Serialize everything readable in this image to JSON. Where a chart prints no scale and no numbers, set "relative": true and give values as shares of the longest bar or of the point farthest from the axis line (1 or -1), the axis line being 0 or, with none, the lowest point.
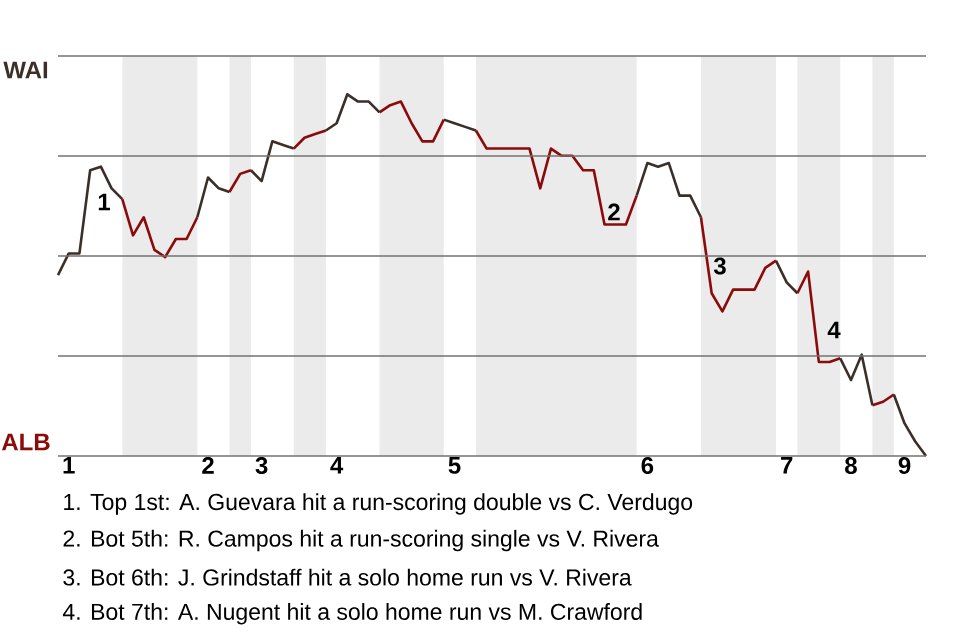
{
  "chart_data": {
    "type": "line",
    "relative": true,
    "categories": [
      null,
      "1",
      null,
      null,
      null,
      null,
      null,
      null,
      null,
      null,
      null,
      null,
      null,
      null,
      "2",
      null,
      null,
      null,
      null,
      "3",
      null,
      null,
      null,
      null,
      null,
      null,
      "4",
      null,
      null,
      null,
      null,
      null,
      null,
      null,
      null,
      null,
      null,
      "5",
      null,
      null,
      null,
      null,
      null,
      null,
      null,
      null,
      null,
      null,
      null,
      null,
      null,
      null,
      null,
      null,
      null,
      "6",
      null,
      null,
      null,
      null,
      null,
      null,
      null,
      null,
      null,
      null,
      null,
      null,
      "7",
      null,
      null,
      null,
      null,
      null,
      "8",
      null,
      null,
      null,
      null,
      "9",
      null,
      null
    ],
    "series": [
      {
        "color": "#3b2f2a",
        "values": [
          0.5,
          0.56,
          0.56,
          0.79,
          0.8,
          0.74,
          0.71,
          null,
          null,
          null,
          null,
          null,
          null,
          null,
          null,
          null,
          null,
          null,
          null,
          null,
          null,
          null,
          null,
          null,
          null,
          null,
          null,
          null,
          null,
          null,
          null,
          null,
          null,
          null,
          null,
          null,
          null,
          null,
          null,
          null,
          null,
          null,
          null,
          null,
          null,
          null,
          null,
          null,
          null,
          null,
          null,
          null,
          null,
          null,
          null,
          null,
          null,
          null,
          null,
          null,
          null,
          null,
          null,
          null,
          null,
          null,
          null,
          null,
          null,
          null,
          null,
          null,
          null,
          null,
          null,
          null,
          null,
          null,
          null,
          null,
          null,
          null
        ]
      },
      {
        "color": "#8b0a0a",
        "values": [
          null,
          null,
          null,
          null,
          null,
          null,
          0.71,
          0.61,
          0.66,
          0.57,
          0.55,
          0.6,
          0.6,
          0.66,
          null,
          null,
          null,
          null,
          null,
          null,
          null,
          null,
          null,
          null,
          null,
          null,
          null,
          null,
          null,
          null,
          null,
          null,
          null,
          null,
          null,
          null,
          null,
          null,
          null,
          null,
          null,
          null,
          null,
          null,
          null,
          null,
          null,
          null,
          null,
          null,
          null,
          null,
          null,
          null,
          null,
          null,
          null,
          null,
          null,
          null,
          null,
          null,
          null,
          null,
          null,
          null,
          null,
          null,
          null,
          null,
          null,
          null,
          null,
          null,
          null,
          null,
          null,
          null,
          null,
          null,
          null,
          null
        ]
      },
      {
        "color": "#3b2f2a",
        "values": [
          null,
          null,
          null,
          null,
          null,
          null,
          null,
          null,
          null,
          null,
          null,
          null,
          null,
          0.66,
          0.77,
          0.74,
          0.73,
          null,
          null,
          null,
          null,
          null,
          null,
          null,
          null,
          null,
          null,
          null,
          null,
          null,
          null,
          null,
          null,
          null,
          null,
          null,
          null,
          null,
          null,
          null,
          null,
          null,
          null,
          null,
          null,
          null,
          null,
          null,
          null,
          null,
          null,
          null,
          null,
          null,
          null,
          null,
          null,
          null,
          null,
          null,
          null,
          null,
          null,
          null,
          null,
          null,
          null,
          null,
          null,
          null,
          null,
          null,
          null,
          null,
          null,
          null,
          null,
          null,
          null,
          null,
          null,
          null
        ]
      },
      {
        "color": "#8b0a0a",
        "values": [
          null,
          null,
          null,
          null,
          null,
          null,
          null,
          null,
          null,
          null,
          null,
          null,
          null,
          null,
          null,
          null,
          0.73,
          0.78,
          0.79,
          null,
          null,
          null,
          null,
          null,
          null,
          null,
          null,
          null,
          null,
          null,
          null,
          null,
          null,
          null,
          null,
          null,
          null,
          null,
          null,
          null,
          null,
          null,
          null,
          null,
          null,
          null,
          null,
          null,
          null,
          null,
          null,
          null,
          null,
          null,
          null,
          null,
          null,
          null,
          null,
          null,
          null,
          null,
          null,
          null,
          null,
          null,
          null,
          null,
          null,
          null,
          null,
          null,
          null,
          null,
          null,
          null,
          null,
          null,
          null,
          null,
          null,
          null
        ]
      },
      {
        "color": "#3b2f2a",
        "values": [
          null,
          null,
          null,
          null,
          null,
          null,
          null,
          null,
          null,
          null,
          null,
          null,
          null,
          null,
          null,
          null,
          null,
          null,
          0.79,
          0.76,
          0.87,
          0.86,
          0.85,
          null,
          null,
          null,
          null,
          null,
          null,
          null,
          null,
          null,
          null,
          null,
          null,
          null,
          null,
          null,
          null,
          null,
          null,
          null,
          null,
          null,
          null,
          null,
          null,
          null,
          null,
          null,
          null,
          null,
          null,
          null,
          null,
          null,
          null,
          null,
          null,
          null,
          null,
          null,
          null,
          null,
          null,
          null,
          null,
          null,
          null,
          null,
          null,
          null,
          null,
          null,
          null,
          null,
          null,
          null,
          null,
          null,
          null,
          null
        ]
      },
      {
        "color": "#8b0a0a",
        "values": [
          null,
          null,
          null,
          null,
          null,
          null,
          null,
          null,
          null,
          null,
          null,
          null,
          null,
          null,
          null,
          null,
          null,
          null,
          null,
          null,
          null,
          null,
          0.85,
          0.88,
          0.89,
          0.9,
          null,
          null,
          null,
          null,
          null,
          null,
          null,
          null,
          null,
          null,
          null,
          null,
          null,
          null,
          null,
          null,
          null,
          null,
          null,
          null,
          null,
          null,
          null,
          null,
          null,
          null,
          null,
          null,
          null,
          null,
          null,
          null,
          null,
          null,
          null,
          null,
          null,
          null,
          null,
          null,
          null,
          null,
          null,
          null,
          null,
          null,
          null,
          null,
          null,
          null,
          null,
          null,
          null,
          null,
          null,
          null
        ]
      },
      {
        "color": "#3b2f2a",
        "values": [
          null,
          null,
          null,
          null,
          null,
          null,
          null,
          null,
          null,
          null,
          null,
          null,
          null,
          null,
          null,
          null,
          null,
          null,
          null,
          null,
          null,
          null,
          null,
          null,
          null,
          0.9,
          0.92,
          1,
          0.98,
          0.98,
          0.95,
          null,
          null,
          null,
          null,
          null,
          null,
          null,
          null,
          null,
          null,
          null,
          null,
          null,
          null,
          null,
          null,
          null,
          null,
          null,
          null,
          null,
          null,
          null,
          null,
          null,
          null,
          null,
          null,
          null,
          null,
          null,
          null,
          null,
          null,
          null,
          null,
          null,
          null,
          null,
          null,
          null,
          null,
          null,
          null,
          null,
          null,
          null,
          null,
          null,
          null,
          null
        ]
      },
      {
        "color": "#8b0a0a",
        "values": [
          null,
          null,
          null,
          null,
          null,
          null,
          null,
          null,
          null,
          null,
          null,
          null,
          null,
          null,
          null,
          null,
          null,
          null,
          null,
          null,
          null,
          null,
          null,
          null,
          null,
          null,
          null,
          null,
          null,
          null,
          0.95,
          0.97,
          0.98,
          0.92,
          0.87,
          0.87,
          0.93,
          null,
          null,
          null,
          null,
          null,
          null,
          null,
          null,
          null,
          null,
          null,
          null,
          null,
          null,
          null,
          null,
          null,
          null,
          null,
          null,
          null,
          null,
          null,
          null,
          null,
          null,
          null,
          null,
          null,
          null,
          null,
          null,
          null,
          null,
          null,
          null,
          null,
          null,
          null,
          null,
          null,
          null,
          null,
          null,
          null
        ]
      },
      {
        "color": "#3b2f2a",
        "values": [
          null,
          null,
          null,
          null,
          null,
          null,
          null,
          null,
          null,
          null,
          null,
          null,
          null,
          null,
          null,
          null,
          null,
          null,
          null,
          null,
          null,
          null,
          null,
          null,
          null,
          null,
          null,
          null,
          null,
          null,
          null,
          null,
          null,
          null,
          null,
          null,
          0.93,
          0.92,
          0.91,
          0.9,
          null,
          null,
          null,
          null,
          null,
          null,
          null,
          null,
          null,
          null,
          null,
          null,
          null,
          null,
          null,
          null,
          null,
          null,
          null,
          null,
          null,
          null,
          null,
          null,
          null,
          null,
          null,
          null,
          null,
          null,
          null,
          null,
          null,
          null,
          null,
          null,
          null,
          null,
          null,
          null,
          null,
          null
        ]
      },
      {
        "color": "#8b0a0a",
        "values": [
          null,
          null,
          null,
          null,
          null,
          null,
          null,
          null,
          null,
          null,
          null,
          null,
          null,
          null,
          null,
          null,
          null,
          null,
          null,
          null,
          null,
          null,
          null,
          null,
          null,
          null,
          null,
          null,
          null,
          null,
          null,
          null,
          null,
          null,
          null,
          null,
          null,
          null,
          null,
          0.9,
          0.85,
          0.85,
          0.85,
          0.85,
          0.85,
          0.74,
          0.85,
          0.83,
          0.83,
          0.79,
          0.79,
          0.64,
          0.64,
          0.64,
          0.72,
          null,
          null,
          null,
          null,
          null,
          null,
          null,
          null,
          null,
          null,
          null,
          null,
          null,
          null,
          null,
          null,
          null,
          null,
          null,
          null,
          null,
          null,
          null,
          null,
          null,
          null,
          null
        ]
      },
      {
        "color": "#3b2f2a",
        "values": [
          null,
          null,
          null,
          null,
          null,
          null,
          null,
          null,
          null,
          null,
          null,
          null,
          null,
          null,
          null,
          null,
          null,
          null,
          null,
          null,
          null,
          null,
          null,
          null,
          null,
          null,
          null,
          null,
          null,
          null,
          null,
          null,
          null,
          null,
          null,
          null,
          null,
          null,
          null,
          null,
          null,
          null,
          null,
          null,
          null,
          null,
          null,
          null,
          null,
          null,
          null,
          null,
          null,
          null,
          0.72,
          0.81,
          0.8,
          0.81,
          0.72,
          0.72,
          0.66,
          null,
          null,
          null,
          null,
          null,
          null,
          null,
          null,
          null,
          null,
          null,
          null,
          null,
          null,
          null,
          null,
          null,
          null,
          null,
          null,
          null
        ]
      },
      {
        "color": "#8b0a0a",
        "values": [
          null,
          null,
          null,
          null,
          null,
          null,
          null,
          null,
          null,
          null,
          null,
          null,
          null,
          null,
          null,
          null,
          null,
          null,
          null,
          null,
          null,
          null,
          null,
          null,
          null,
          null,
          null,
          null,
          null,
          null,
          null,
          null,
          null,
          null,
          null,
          null,
          null,
          null,
          null,
          null,
          null,
          null,
          null,
          null,
          null,
          null,
          null,
          null,
          null,
          null,
          null,
          null,
          null,
          null,
          null,
          null,
          null,
          null,
          null,
          null,
          0.66,
          0.45,
          0.4,
          0.46,
          0.46,
          0.46,
          0.52,
          0.54,
          null,
          null,
          null,
          null,
          null,
          null,
          null,
          null,
          null,
          null,
          null,
          null,
          null,
          null
        ]
      },
      {
        "color": "#3b2f2a",
        "values": [
          null,
          null,
          null,
          null,
          null,
          null,
          null,
          null,
          null,
          null,
          null,
          null,
          null,
          null,
          null,
          null,
          null,
          null,
          null,
          null,
          null,
          null,
          null,
          null,
          null,
          null,
          null,
          null,
          null,
          null,
          null,
          null,
          null,
          null,
          null,
          null,
          null,
          null,
          null,
          null,
          null,
          null,
          null,
          null,
          null,
          null,
          null,
          null,
          null,
          null,
          null,
          null,
          null,
          null,
          null,
          null,
          null,
          null,
          null,
          null,
          null,
          null,
          null,
          null,
          null,
          null,
          null,
          0.54,
          0.48,
          0.45,
          null,
          null,
          null,
          null,
          null,
          null,
          null,
          null,
          null,
          null,
          null,
          null
        ]
      },
      {
        "color": "#8b0a0a",
        "values": [
          null,
          null,
          null,
          null,
          null,
          null,
          null,
          null,
          null,
          null,
          null,
          null,
          null,
          null,
          null,
          null,
          null,
          null,
          null,
          null,
          null,
          null,
          null,
          null,
          null,
          null,
          null,
          null,
          null,
          null,
          null,
          null,
          null,
          null,
          null,
          null,
          null,
          null,
          null,
          null,
          null,
          null,
          null,
          null,
          null,
          null,
          null,
          null,
          null,
          null,
          null,
          null,
          null,
          null,
          null,
          null,
          null,
          null,
          null,
          null,
          null,
          null,
          null,
          null,
          null,
          null,
          null,
          null,
          null,
          0.45,
          0.51,
          0.26,
          0.26,
          0.27,
          null,
          null,
          null,
          null,
          null,
          null,
          null,
          null
        ]
      },
      {
        "color": "#3b2f2a",
        "values": [
          null,
          null,
          null,
          null,
          null,
          null,
          null,
          null,
          null,
          null,
          null,
          null,
          null,
          null,
          null,
          null,
          null,
          null,
          null,
          null,
          null,
          null,
          null,
          null,
          null,
          null,
          null,
          null,
          null,
          null,
          null,
          null,
          null,
          null,
          null,
          null,
          null,
          null,
          null,
          null,
          null,
          null,
          null,
          null,
          null,
          null,
          null,
          null,
          null,
          null,
          null,
          null,
          null,
          null,
          null,
          null,
          null,
          null,
          null,
          null,
          null,
          null,
          null,
          null,
          null,
          null,
          null,
          null,
          null,
          null,
          null,
          null,
          null,
          0.27,
          0.21,
          0.28,
          0.14,
          null,
          null,
          null,
          null,
          null
        ]
      },
      {
        "color": "#8b0a0a",
        "values": [
          null,
          null,
          null,
          null,
          null,
          null,
          null,
          null,
          null,
          null,
          null,
          null,
          null,
          null,
          null,
          null,
          null,
          null,
          null,
          null,
          null,
          null,
          null,
          null,
          null,
          null,
          null,
          null,
          null,
          null,
          null,
          null,
          null,
          null,
          null,
          null,
          null,
          null,
          null,
          null,
          null,
          null,
          null,
          null,
          null,
          null,
          null,
          null,
          null,
          null,
          null,
          null,
          null,
          null,
          null,
          null,
          null,
          null,
          null,
          null,
          null,
          null,
          null,
          null,
          null,
          null,
          null,
          null,
          null,
          null,
          null,
          null,
          null,
          null,
          null,
          null,
          0.14,
          0.15,
          0.17,
          null,
          null,
          null
        ]
      },
      {
        "color": "#3b2f2a",
        "values": [
          null,
          null,
          null,
          null,
          null,
          null,
          null,
          null,
          null,
          null,
          null,
          null,
          null,
          null,
          null,
          null,
          null,
          null,
          null,
          null,
          null,
          null,
          null,
          null,
          null,
          null,
          null,
          null,
          null,
          null,
          null,
          null,
          null,
          null,
          null,
          null,
          null,
          null,
          null,
          null,
          null,
          null,
          null,
          null,
          null,
          null,
          null,
          null,
          null,
          null,
          null,
          null,
          null,
          null,
          null,
          null,
          null,
          null,
          null,
          null,
          null,
          null,
          null,
          null,
          null,
          null,
          null,
          null,
          null,
          null,
          null,
          null,
          null,
          null,
          null,
          null,
          null,
          null,
          0.17,
          0.09,
          0.04,
          0
        ]
      }
    ],
    "grid": "y",
    "annotations": [
      "1",
      "2",
      "3",
      "4",
      "WAI",
      "ALB",
      "1. Top 1st: A. Guevara hit a run-scoring double vs C. Verdugo",
      "2. Bot 5th: R. Campos hit a run-scoring single vs V. Rivera",
      "3. Bot 6th: J. Grindstaff hit a solo home run vs V. Rivera",
      "4. Bot 7th: A. Nugent hit a solo home run vs M. Crawford"
    ]
  }
}
